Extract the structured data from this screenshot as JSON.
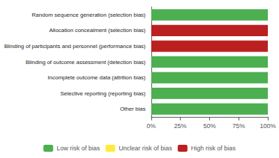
{
  "chart_data": {
    "type": "bar",
    "orientation": "horizontal",
    "stacked": true,
    "categories": [
      "Other bias",
      "Selective reporting (reporting bias)",
      "Incomplete outcome data (attrition bias)",
      "Blinding of outcome assessment (detection bias)",
      "Blinding of participants and personnel (performance bias)",
      "Allocation concealment (selection bias)",
      "Random sequence generation (selection bias)"
    ],
    "series": [
      {
        "name": "Low risk of bias",
        "color": "#4CAF50",
        "values": [
          100,
          100,
          100,
          100,
          0,
          0,
          100
        ]
      },
      {
        "name": "Unclear risk of bias",
        "color": "#FFEB3B",
        "values": [
          0,
          0,
          0,
          0,
          0,
          0,
          0
        ]
      },
      {
        "name": "High risk of bias",
        "color": "#BB2020",
        "values": [
          0,
          0,
          0,
          0,
          100,
          100,
          0
        ]
      }
    ],
    "xlim": [
      0,
      100
    ],
    "xticks": [
      {
        "value": 0,
        "label": "0%"
      },
      {
        "value": 25,
        "label": "25%"
      },
      {
        "value": 50,
        "label": "50%"
      },
      {
        "value": 75,
        "label": "75%"
      },
      {
        "value": 100,
        "label": "100%"
      }
    ],
    "grid": false,
    "legend": "bottom"
  }
}
